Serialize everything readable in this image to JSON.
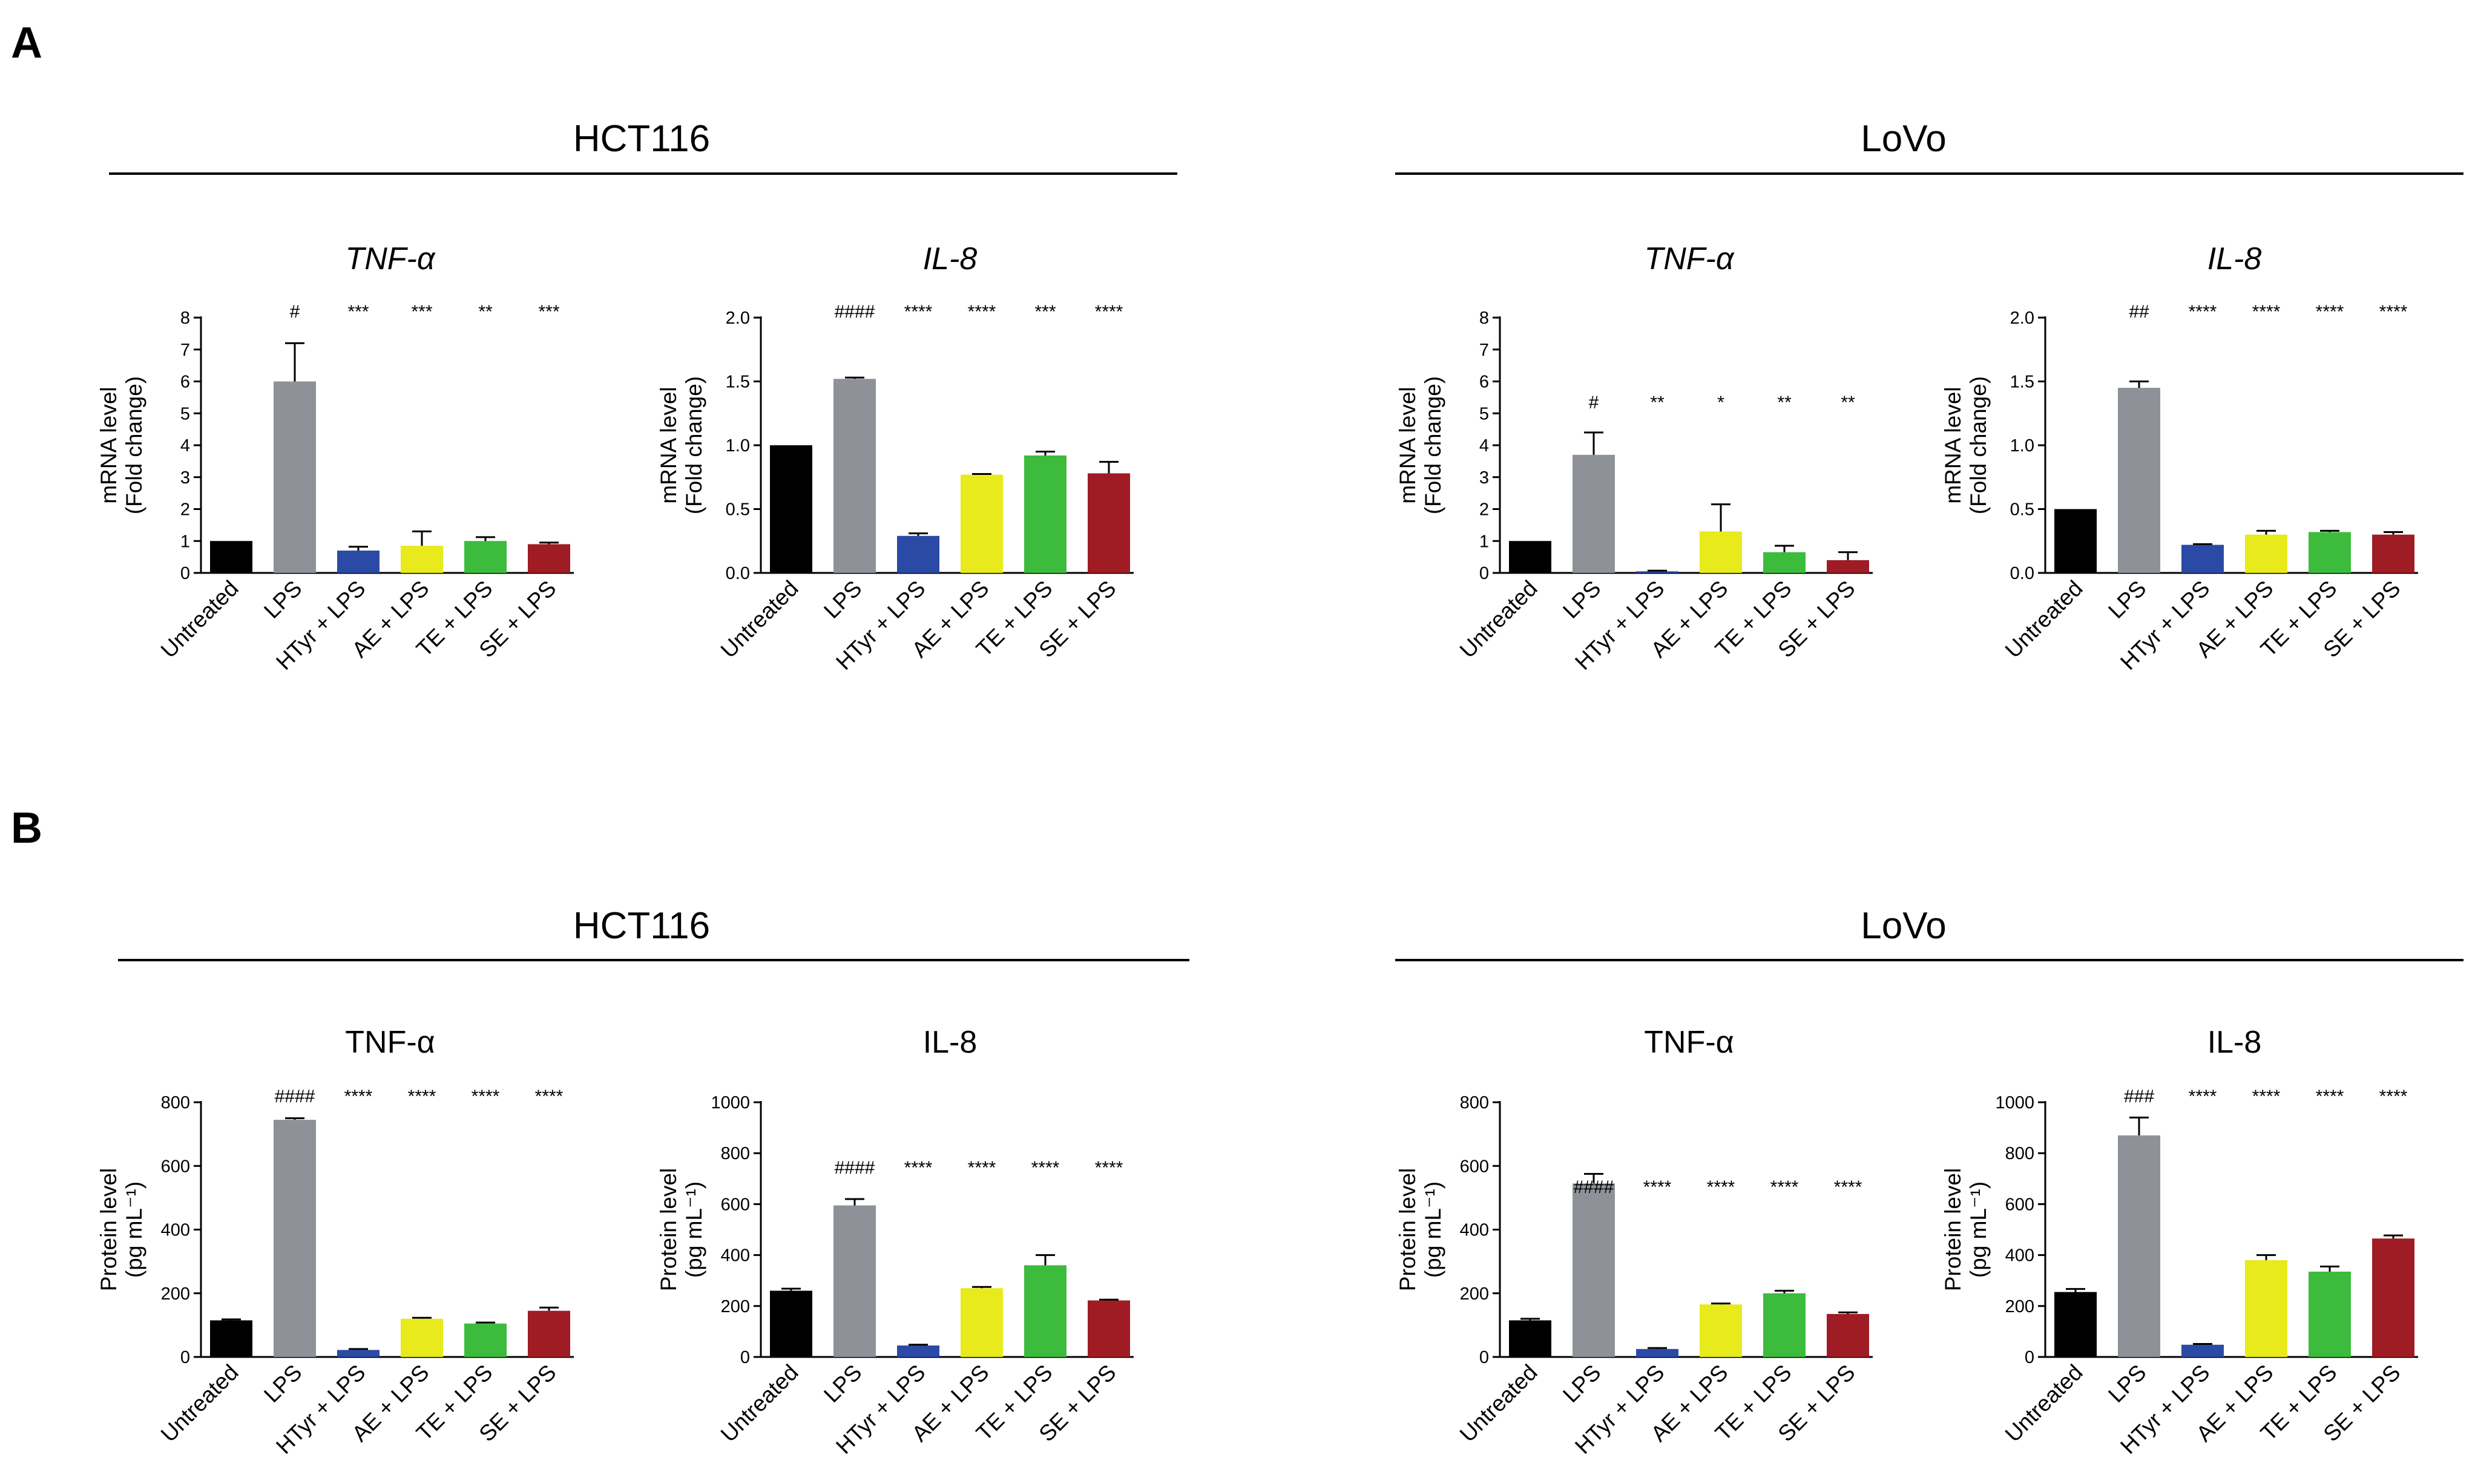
{
  "panels": [
    {
      "letter": "A",
      "groups": [
        {
          "title": "HCT116"
        },
        {
          "title": "LoVo"
        }
      ]
    },
    {
      "letter": "B",
      "groups": [
        {
          "title": "HCT116"
        },
        {
          "title": "LoVo"
        }
      ]
    }
  ],
  "colors": {
    "Untreated": "#000000",
    "LPS": "#8e9298",
    "HTyr + LPS": "#2b4aa6",
    "AE + LPS": "#e8ea1c",
    "TE + LPS": "#3dbb3d",
    "SE + LPS": "#a01c24"
  },
  "chart_data": [
    {
      "type": "bar",
      "panel": "A",
      "group": "HCT116",
      "title": "TNF-α",
      "title_italic": true,
      "ylabel": [
        "mRNA level",
        "(Fold change)"
      ],
      "ylim": [
        0,
        8
      ],
      "yticks": [
        0,
        1,
        2,
        3,
        4,
        5,
        6,
        7,
        8
      ],
      "tick_decimals": 0,
      "categories": [
        "Untreated",
        "LPS",
        "HTyr + LPS",
        "AE + LPS",
        "TE + LPS",
        "SE + LPS"
      ],
      "values": [
        1.0,
        6.0,
        0.7,
        0.85,
        1.0,
        0.9
      ],
      "errors": [
        0,
        1.2,
        0.12,
        0.45,
        0.12,
        0.05
      ],
      "significance": [
        "",
        "#",
        "***",
        "***",
        "**",
        "***"
      ]
    },
    {
      "type": "bar",
      "panel": "A",
      "group": "HCT116",
      "title": "IL-8",
      "title_italic": true,
      "ylabel": [
        "mRNA level",
        "(Fold change)"
      ],
      "ylim": [
        0,
        2.0
      ],
      "yticks": [
        0,
        0.5,
        1.0,
        1.5,
        2.0
      ],
      "tick_decimals": 1,
      "categories": [
        "Untreated",
        "LPS",
        "HTyr + LPS",
        "AE + LPS",
        "TE + LPS",
        "SE + LPS"
      ],
      "values": [
        1.0,
        1.52,
        0.29,
        0.77,
        0.92,
        0.78
      ],
      "errors": [
        0,
        0.01,
        0.02,
        0.005,
        0.03,
        0.09
      ],
      "significance": [
        "",
        "####",
        "****",
        "****",
        "***",
        "****"
      ]
    },
    {
      "type": "bar",
      "panel": "A",
      "group": "LoVo",
      "title": "TNF-α",
      "title_italic": true,
      "ylabel": [
        "mRNA level",
        "(Fold change)"
      ],
      "ylim": [
        0,
        8
      ],
      "yticks": [
        0,
        1,
        2,
        3,
        4,
        5,
        6,
        7,
        8
      ],
      "tick_decimals": 0,
      "categories": [
        "Untreated",
        "LPS",
        "HTyr + LPS",
        "AE + LPS",
        "TE + LPS",
        "SE + LPS"
      ],
      "values": [
        1.0,
        3.7,
        0.05,
        1.3,
        0.65,
        0.4
      ],
      "errors": [
        0,
        0.7,
        0.02,
        0.85,
        0.2,
        0.25
      ],
      "significance": [
        "",
        "#",
        "**",
        "*",
        "**",
        "**"
      ]
    },
    {
      "type": "bar",
      "panel": "A",
      "group": "LoVo",
      "title": "IL-8",
      "title_italic": true,
      "ylabel": [
        "mRNA level",
        "(Fold change)"
      ],
      "ylim": [
        0,
        2.0
      ],
      "yticks": [
        0,
        0.5,
        1.0,
        1.5,
        2.0
      ],
      "tick_decimals": 1,
      "categories": [
        "Untreated",
        "LPS",
        "HTyr + LPS",
        "AE + LPS",
        "TE + LPS",
        "SE + LPS"
      ],
      "values": [
        0.5,
        1.45,
        0.22,
        0.3,
        0.32,
        0.3
      ],
      "errors": [
        0,
        0.05,
        0.005,
        0.03,
        0.01,
        0.02
      ],
      "significance": [
        "",
        "##",
        "****",
        "****",
        "****",
        "****"
      ]
    },
    {
      "type": "bar",
      "panel": "B",
      "group": "HCT116",
      "title": "TNF-α",
      "title_italic": false,
      "ylabel": [
        "Protein level",
        "(pg mL⁻¹)"
      ],
      "ylim": [
        0,
        800
      ],
      "yticks": [
        0,
        200,
        400,
        600,
        800
      ],
      "tick_decimals": 0,
      "categories": [
        "Untreated",
        "LPS",
        "HTyr + LPS",
        "AE + LPS",
        "TE + LPS",
        "SE + LPS"
      ],
      "values": [
        115,
        745,
        22,
        120,
        105,
        145
      ],
      "errors": [
        3,
        5,
        3,
        3,
        3,
        10
      ],
      "significance": [
        "",
        "####",
        "****",
        "****",
        "****",
        "****"
      ]
    },
    {
      "type": "bar",
      "panel": "B",
      "group": "HCT116",
      "title": "IL-8",
      "title_italic": false,
      "ylabel": [
        "Protein level",
        "(pg mL⁻¹)"
      ],
      "ylim": [
        0,
        1000
      ],
      "yticks": [
        0,
        200,
        400,
        600,
        800,
        1000
      ],
      "tick_decimals": 0,
      "categories": [
        "Untreated",
        "LPS",
        "HTyr + LPS",
        "AE + LPS",
        "TE + LPS",
        "SE + LPS"
      ],
      "values": [
        260,
        595,
        45,
        270,
        360,
        222
      ],
      "errors": [
        8,
        25,
        3,
        5,
        40,
        3
      ],
      "significance": [
        "",
        "####",
        "****",
        "****",
        "****",
        "****"
      ]
    },
    {
      "type": "bar",
      "panel": "B",
      "group": "LoVo",
      "title": "TNF-α",
      "title_italic": false,
      "ylabel": [
        "Protein level",
        "(pg mL⁻¹)"
      ],
      "ylim": [
        0,
        800
      ],
      "yticks": [
        0,
        200,
        400,
        600,
        800
      ],
      "tick_decimals": 0,
      "categories": [
        "Untreated",
        "LPS",
        "HTyr + LPS",
        "AE + LPS",
        "TE + LPS",
        "SE + LPS"
      ],
      "values": [
        115,
        545,
        25,
        165,
        200,
        135
      ],
      "errors": [
        5,
        30,
        3,
        3,
        8,
        5
      ],
      "significance": [
        "",
        "####",
        "****",
        "****",
        "****",
        "****"
      ]
    },
    {
      "type": "bar",
      "panel": "B",
      "group": "LoVo",
      "title": "IL-8",
      "title_italic": false,
      "ylabel": [
        "Protein level",
        "(pg mL⁻¹)"
      ],
      "ylim": [
        0,
        1000
      ],
      "yticks": [
        0,
        200,
        400,
        600,
        800,
        1000
      ],
      "tick_decimals": 0,
      "categories": [
        "Untreated",
        "LPS",
        "HTyr + LPS",
        "AE + LPS",
        "TE + LPS",
        "SE + LPS"
      ],
      "values": [
        255,
        870,
        48,
        380,
        335,
        465
      ],
      "errors": [
        12,
        70,
        3,
        20,
        20,
        12
      ],
      "significance": [
        "",
        "###",
        "****",
        "****",
        "****",
        "****"
      ]
    }
  ]
}
